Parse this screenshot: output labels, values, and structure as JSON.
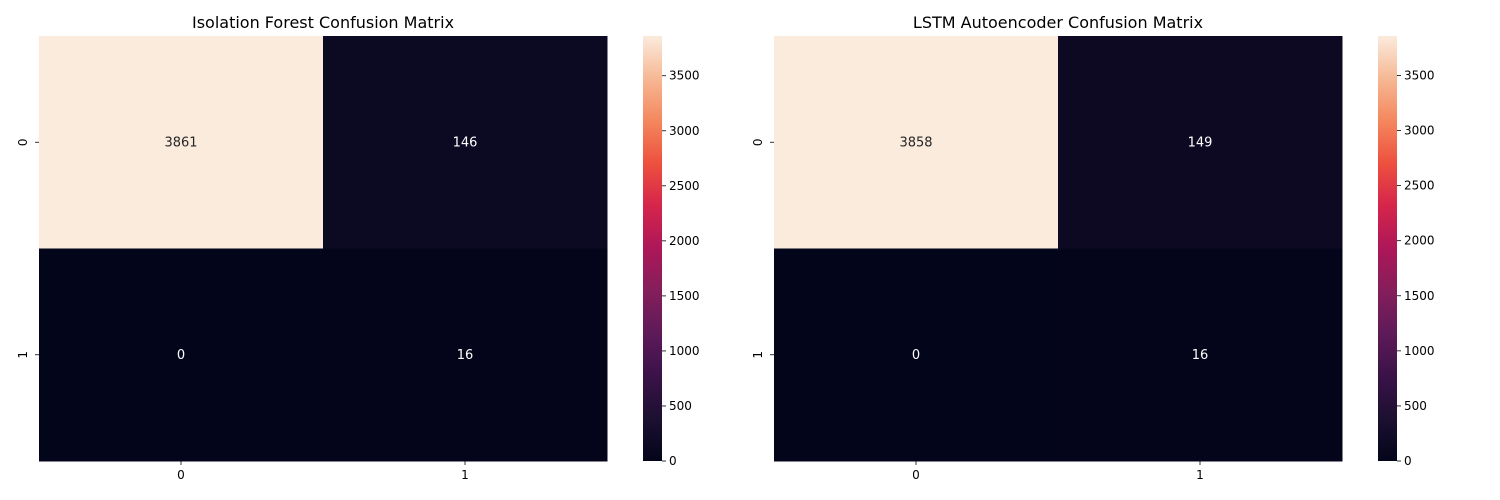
{
  "chart_data": [
    {
      "type": "heatmap",
      "title": "Isolation Forest Confusion Matrix",
      "xlabel": "",
      "ylabel": "",
      "x_categories": [
        "0",
        "1"
      ],
      "y_categories": [
        "0",
        "1"
      ],
      "values": [
        [
          3861,
          146
        ],
        [
          0,
          16
        ]
      ],
      "annotations": [
        [
          "3861",
          "146"
        ],
        [
          "0",
          "16"
        ]
      ],
      "colorbar": {
        "min": 0,
        "max": 3861,
        "ticks": [
          0,
          500,
          1000,
          1500,
          2000,
          2500,
          3000,
          3500
        ],
        "tick_labels": [
          "0",
          "500",
          "1000",
          "1500",
          "2000",
          "2500",
          "3000",
          "3500"
        ]
      },
      "colormap": "rocket"
    },
    {
      "type": "heatmap",
      "title": "LSTM Autoencoder Confusion Matrix",
      "xlabel": "",
      "ylabel": "",
      "x_categories": [
        "0",
        "1"
      ],
      "y_categories": [
        "0",
        "1"
      ],
      "values": [
        [
          3858,
          149
        ],
        [
          0,
          16
        ]
      ],
      "annotations": [
        [
          "3858",
          "149"
        ],
        [
          "0",
          "16"
        ]
      ],
      "colorbar": {
        "min": 0,
        "max": 3858,
        "ticks": [
          0,
          500,
          1000,
          1500,
          2000,
          2500,
          3000,
          3500
        ],
        "tick_labels": [
          "0",
          "500",
          "1000",
          "1500",
          "2000",
          "2500",
          "3000",
          "3500"
        ]
      },
      "colormap": "rocket"
    }
  ]
}
